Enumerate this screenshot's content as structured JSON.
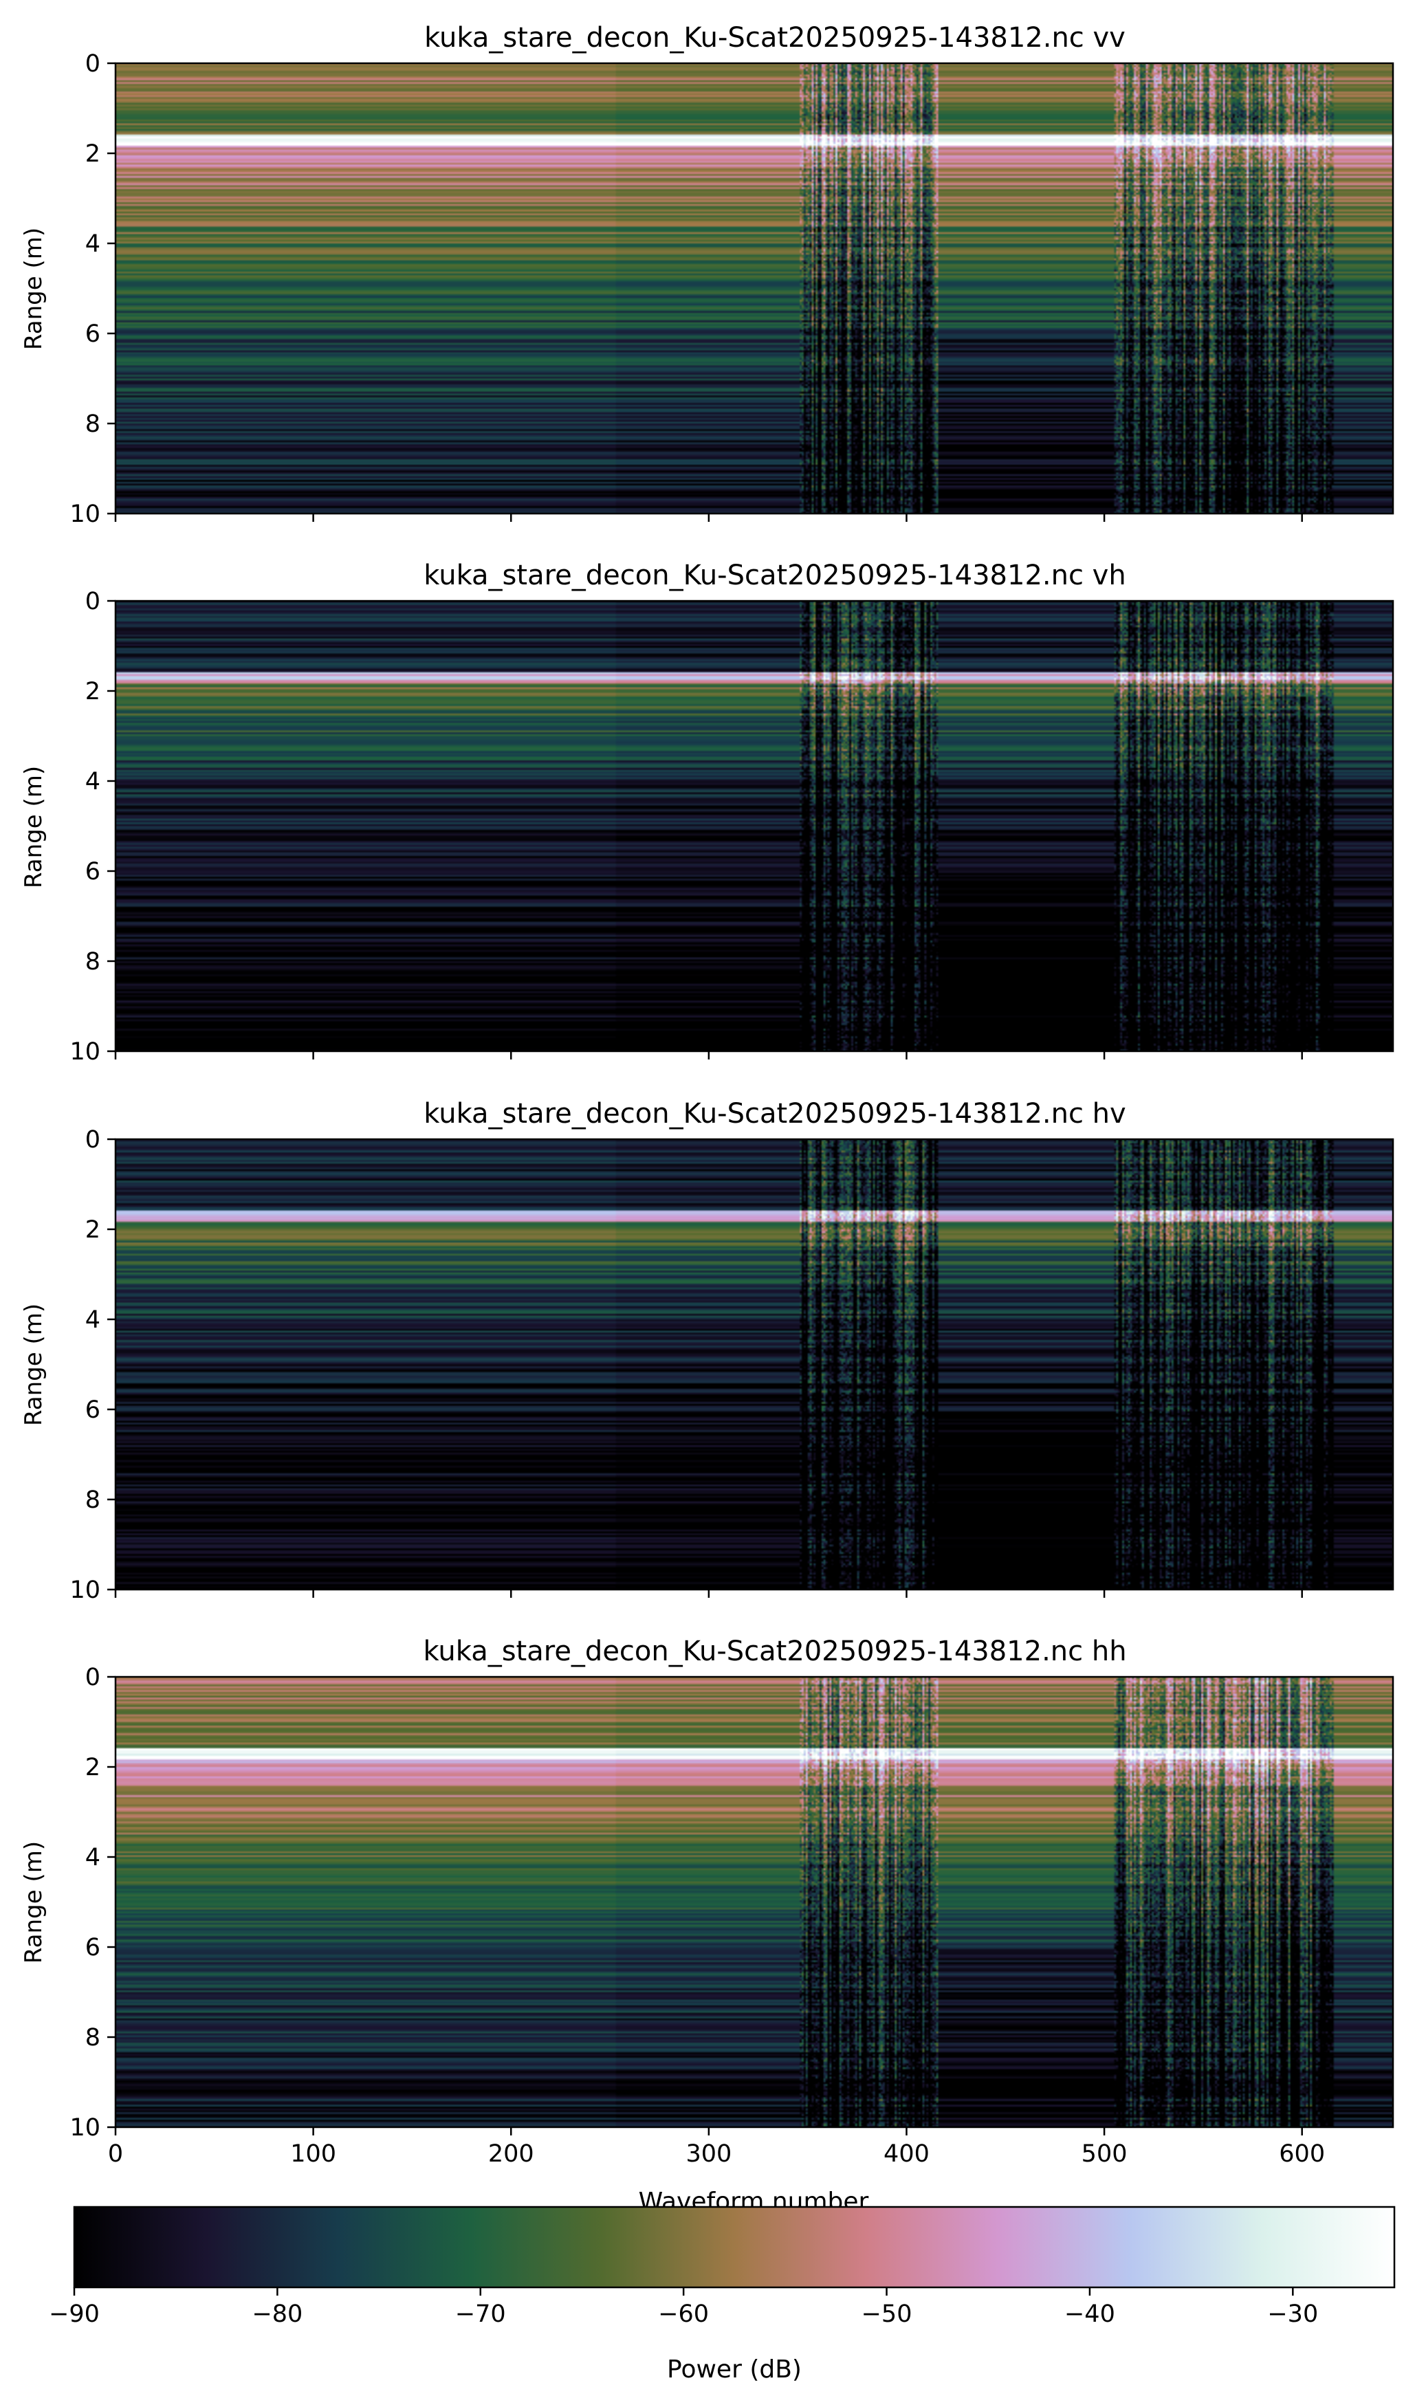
{
  "chart_data": [
    {
      "type": "heatmap",
      "title": "kuka_stare_decon_Ku-Scat20250925-143812.nc vv",
      "xlabel": "",
      "ylabel": "Range (m)",
      "xlim": [
        0,
        646
      ],
      "ylim": [
        10,
        0
      ],
      "xticks": [
        "0",
        "100",
        "200",
        "300",
        "400",
        "500",
        "600"
      ],
      "yticks": [
        "0",
        "2",
        "4",
        "6",
        "8",
        "10"
      ],
      "surface_range_m": 1.7,
      "target_region": [
        345,
        415,
        505,
        615
      ],
      "hdr": 0.6
    },
    {
      "type": "heatmap",
      "title": "kuka_stare_decon_Ku-Scat20250925-143812.nc vh",
      "xlabel": "",
      "ylabel": "Range (m)",
      "xlim": [
        0,
        646
      ],
      "ylim": [
        10,
        0
      ],
      "xticks": [
        "0",
        "100",
        "200",
        "300",
        "400",
        "500",
        "600"
      ],
      "yticks": [
        "0",
        "2",
        "4",
        "6",
        "8",
        "10"
      ],
      "surface_range_m": 1.7,
      "target_region": [
        345,
        415,
        505,
        615
      ],
      "hdr": 0.15
    },
    {
      "type": "heatmap",
      "title": "kuka_stare_decon_Ku-Scat20250925-143812.nc hv",
      "xlabel": "",
      "ylabel": "Range (m)",
      "xlim": [
        0,
        646
      ],
      "ylim": [
        10,
        0
      ],
      "xticks": [
        "0",
        "100",
        "200",
        "300",
        "400",
        "500",
        "600"
      ],
      "yticks": [
        "0",
        "2",
        "4",
        "6",
        "8",
        "10"
      ],
      "surface_range_m": 1.7,
      "target_region": [
        345,
        415,
        505,
        615
      ],
      "hdr": 0.15
    },
    {
      "type": "heatmap",
      "title": "kuka_stare_decon_Ku-Scat20250925-143812.nc hh",
      "xlabel": "Waveform number",
      "ylabel": "Range (m)",
      "xlim": [
        0,
        646
      ],
      "ylim": [
        10,
        0
      ],
      "xticks": [
        "0",
        "100",
        "200",
        "300",
        "400",
        "500",
        "600"
      ],
      "yticks": [
        "0",
        "2",
        "4",
        "6",
        "8",
        "10"
      ],
      "surface_range_m": 1.7,
      "target_region": [
        345,
        415,
        505,
        615
      ],
      "hdr": 0.6
    }
  ],
  "colorbar": {
    "label": "Power (dB)",
    "range": [
      -90,
      -25
    ],
    "ticks": [
      "−90",
      "−80",
      "−70",
      "−60",
      "−50",
      "−40",
      "−30"
    ],
    "tick_values": [
      -90,
      -80,
      -70,
      -60,
      -50,
      -40,
      -30
    ],
    "colormap": "cubehelix-like",
    "stops": [
      "#000000",
      "#1a1430",
      "#173c4c",
      "#1e6140",
      "#536b2f",
      "#a07947",
      "#d07f88",
      "#d398d0",
      "#b8c7f0",
      "#dbf1ec",
      "#ffffff"
    ]
  }
}
